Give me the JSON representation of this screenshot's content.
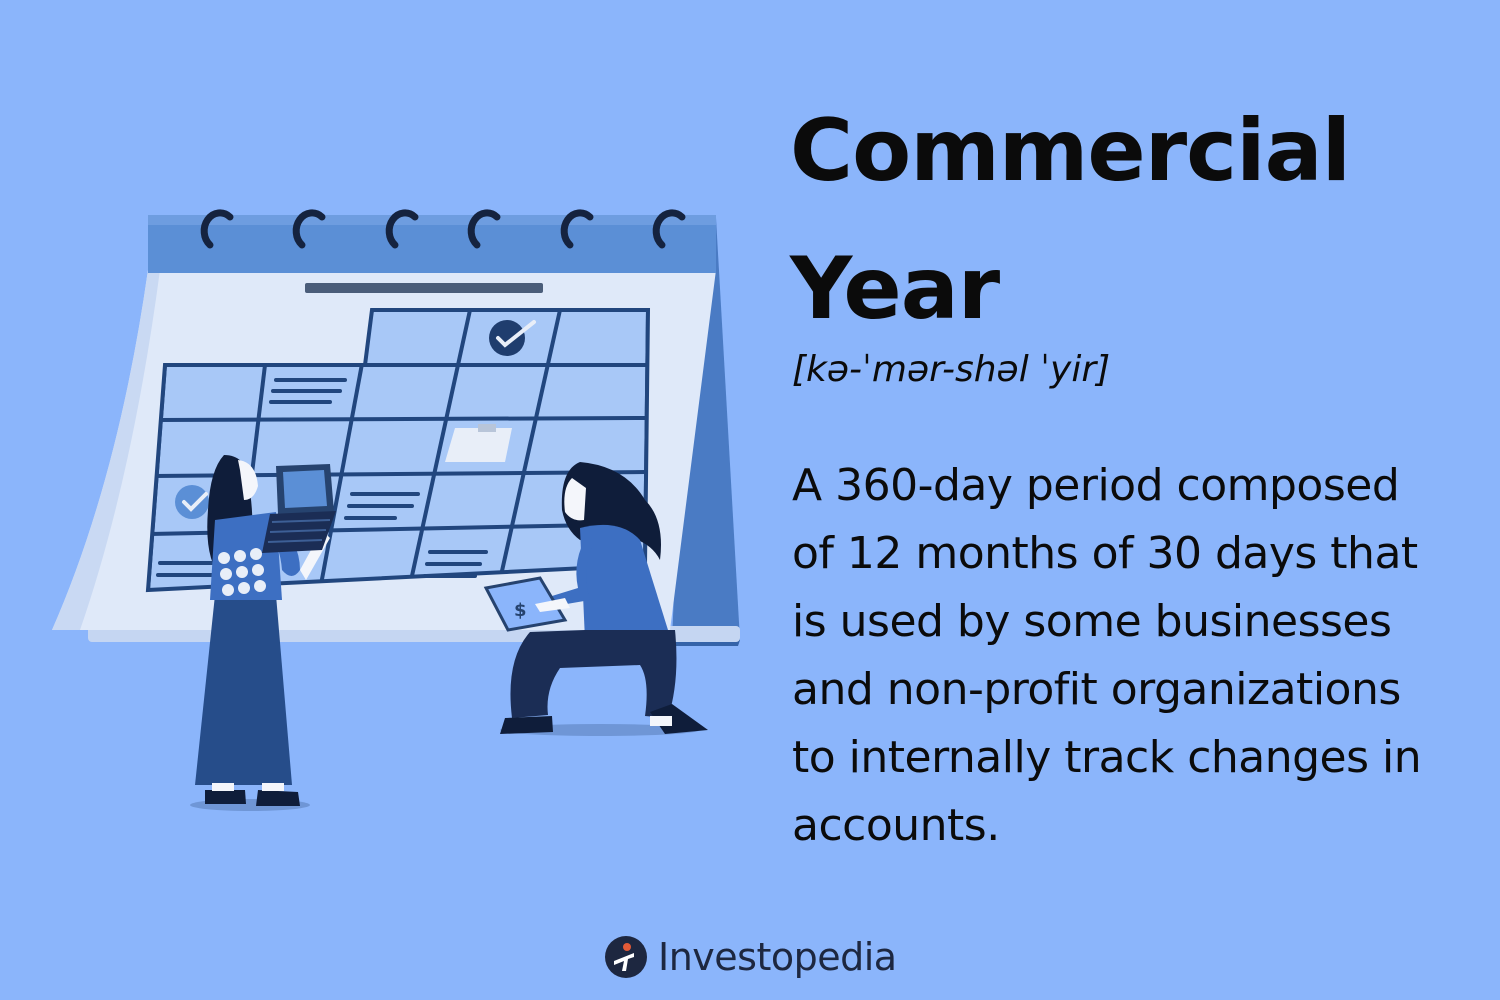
{
  "title": "Commercial Year",
  "pronunciation": "[kə-ˈmər-shəl ˈyir]",
  "definition": "A 360-day period composed of 12 months of 30 days that is used by some businesses and non-profit organizations to internally track changes in accounts.",
  "brand": {
    "name": "Investopedia",
    "icon": "investopedia-logo-icon"
  },
  "illustration": {
    "subject": "desk-calendar-icon",
    "colors": {
      "background": "#8bb5fb",
      "calendar_page": "#dfe9f9",
      "calendar_header": "#5b8fd6",
      "calendar_stand": "#4a7bc4",
      "grid_line": "#21467e",
      "dark_navy": "#1b2d55",
      "shirt_blue": "#3d6fc2"
    }
  }
}
